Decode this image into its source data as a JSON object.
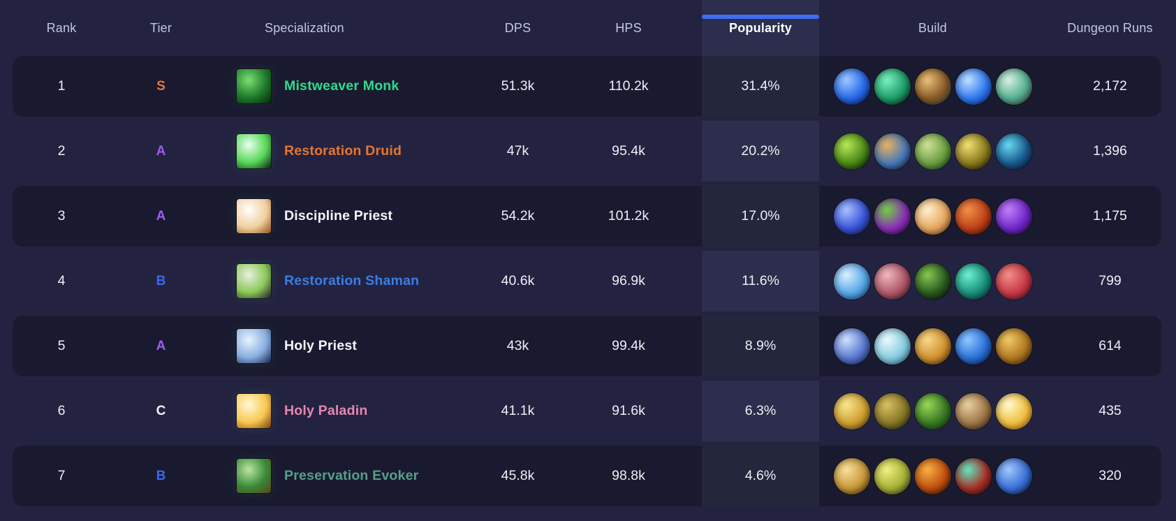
{
  "colors": {
    "page_bg": "#232341",
    "card_bg": "#191a2f",
    "popularity_band": "rgba(182,192,240,0.07)",
    "accent": "#3d6ef5",
    "header_text": "#c3c8dd",
    "value_text": "#eef0f6"
  },
  "table": {
    "active_column": "Popularity",
    "columns": [
      {
        "key": "rank",
        "label": "Rank"
      },
      {
        "key": "tier",
        "label": "Tier"
      },
      {
        "key": "spec",
        "label": "Specialization"
      },
      {
        "key": "dps",
        "label": "DPS"
      },
      {
        "key": "hps",
        "label": "HPS"
      },
      {
        "key": "popularity",
        "label": "Popularity",
        "active": true
      },
      {
        "key": "build",
        "label": "Build"
      },
      {
        "key": "runs",
        "label": "Dungeon Runs"
      }
    ],
    "rows": [
      {
        "rank": "1",
        "tier": "S",
        "tier_color": "#e8763a",
        "spec": {
          "name": "Mistweaver Monk",
          "color": "#2ddc89",
          "icon_name": "mistweaver-monk-icon",
          "icon_colors": [
            "#7ae070",
            "#1e7a2a",
            "#06240a"
          ]
        },
        "dps": "51.3k",
        "hps": "110.2k",
        "popularity": "31.4%",
        "runs": "2,172",
        "build": [
          {
            "name": "blue-lightning-web-icon",
            "colors": [
              "#9cc8ff",
              "#2668e8",
              "#071c66"
            ]
          },
          {
            "name": "jade-mist-swirl-icon",
            "colors": [
              "#7af0c0",
              "#1d9e6a",
              "#062a1a"
            ]
          },
          {
            "name": "bronze-monk-plaque-icon",
            "colors": [
              "#e8c078",
              "#8a5a28",
              "#2a4434"
            ]
          },
          {
            "name": "blue-light-streak-icon",
            "colors": [
              "#bfe0ff",
              "#2f7af0",
              "#0a2a8a"
            ]
          },
          {
            "name": "jade-statue-icon",
            "colors": [
              "#d8f0e0",
              "#52b090",
              "#463a30"
            ]
          }
        ]
      },
      {
        "rank": "2",
        "tier": "A",
        "tier_color": "#9d5cf0",
        "spec": {
          "name": "Restoration Druid",
          "color": "#e8752e",
          "icon_name": "restoration-druid-icon",
          "icon_colors": [
            "#eafff0",
            "#58d858",
            "#0a2012"
          ]
        },
        "dps": "47k",
        "hps": "95.4k",
        "popularity": "20.2%",
        "runs": "1,396",
        "build": [
          {
            "name": "green-sprout-icon",
            "colors": [
              "#b8e855",
              "#4a8a18",
              "#0a1404"
            ]
          },
          {
            "name": "autumn-leaf-frost-icon",
            "colors": [
              "#e8b060",
              "#4a7ab8",
              "#12204a"
            ]
          },
          {
            "name": "green-seed-icon",
            "colors": [
              "#cfe098",
              "#6aa040",
              "#17401a"
            ]
          },
          {
            "name": "golden-lightning-icon",
            "colors": [
              "#f0e070",
              "#8a7a20",
              "#1a1808"
            ]
          },
          {
            "name": "cyan-leaf-icon",
            "colors": [
              "#66d8f0",
              "#1a5a90",
              "#0a1430"
            ]
          }
        ]
      },
      {
        "rank": "3",
        "tier": "A",
        "tier_color": "#9d5cf0",
        "spec": {
          "name": "Discipline Priest",
          "color": "#f4f5f9",
          "icon_name": "discipline-priest-icon",
          "icon_colors": [
            "#ffffff",
            "#f0d0a0",
            "#90501c"
          ]
        },
        "dps": "54.2k",
        "hps": "101.2k",
        "popularity": "17.0%",
        "runs": "1,175",
        "build": [
          {
            "name": "glowing-blue-figure-icon",
            "colors": [
              "#a8c0ff",
              "#3a55d8",
              "#101a50"
            ]
          },
          {
            "name": "purple-green-orbs-icon",
            "colors": [
              "#70d040",
              "#8a30b8",
              "#2a0a44"
            ]
          },
          {
            "name": "radiant-hand-icon",
            "colors": [
              "#fff0d0",
              "#e8a860",
              "#8a4a20"
            ]
          },
          {
            "name": "red-orange-hand-icon",
            "colors": [
              "#f09048",
              "#c04018",
              "#4a0e04"
            ]
          },
          {
            "name": "purple-swirl-icon",
            "colors": [
              "#c080f8",
              "#7028c8",
              "#240848"
            ]
          }
        ]
      },
      {
        "rank": "4",
        "tier": "B",
        "tier_color": "#3b68f0",
        "spec": {
          "name": "Restoration Shaman",
          "color": "#3a7de4",
          "icon_name": "restoration-shaman-icon",
          "icon_colors": [
            "#e8f0e0",
            "#8ac858",
            "#1a1a22"
          ]
        },
        "dps": "40.6k",
        "hps": "96.9k",
        "popularity": "11.6%",
        "runs": "799",
        "build": [
          {
            "name": "ice-crystal-icon",
            "colors": [
              "#d8f0ff",
              "#58a8e8",
              "#14448a"
            ]
          },
          {
            "name": "pink-spirit-figure-icon",
            "colors": [
              "#f0b8c0",
              "#b05868",
              "#441822"
            ]
          },
          {
            "name": "green-serpent-icon",
            "colors": [
              "#88c850",
              "#2a5a20",
              "#0a0a0a"
            ]
          },
          {
            "name": "teal-vortex-icon",
            "colors": [
              "#70f0d0",
              "#18907a",
              "#083038"
            ]
          },
          {
            "name": "red-crystal-fist-icon",
            "colors": [
              "#f09088",
              "#c83848",
              "#58101c"
            ]
          }
        ]
      },
      {
        "rank": "5",
        "tier": "A",
        "tier_color": "#9d5cf0",
        "spec": {
          "name": "Holy Priest",
          "color": "#f4f5f9",
          "icon_name": "holy-priest-icon",
          "icon_colors": [
            "#e8f4ff",
            "#88aee0",
            "#14204a"
          ]
        },
        "dps": "43k",
        "hps": "99.4k",
        "popularity": "8.9%",
        "runs": "614",
        "build": [
          {
            "name": "blue-angel-icon",
            "colors": [
              "#cfe0ff",
              "#5878d0",
              "#1a2a66"
            ]
          },
          {
            "name": "pale-feather-swirl-icon",
            "colors": [
              "#eafaff",
              "#88cce0",
              "#2a7088"
            ]
          },
          {
            "name": "amber-bell-icon",
            "colors": [
              "#f8d888",
              "#d09030",
              "#583808"
            ]
          },
          {
            "name": "blue-orbs-lamp-icon",
            "colors": [
              "#90c8ff",
              "#2a70d8",
              "#0a2458"
            ]
          },
          {
            "name": "golden-phoenix-icon",
            "colors": [
              "#f0c868",
              "#b07820",
              "#44280a"
            ]
          }
        ]
      },
      {
        "rank": "6",
        "tier": "C",
        "tier_color": "#f2f3f7",
        "spec": {
          "name": "Holy Paladin",
          "color": "#e886b0",
          "icon_name": "holy-paladin-icon",
          "icon_colors": [
            "#fff8d8",
            "#f8c850",
            "#7a3c08"
          ]
        },
        "dps": "41.1k",
        "hps": "91.6k",
        "popularity": "6.3%",
        "runs": "435",
        "build": [
          {
            "name": "gold-starburst-icon",
            "colors": [
              "#f8e890",
              "#d0a030",
              "#6a4a10"
            ]
          },
          {
            "name": "olive-relic-icon",
            "colors": [
              "#d8c060",
              "#887828",
              "#2a2810"
            ]
          },
          {
            "name": "green-leaves-icon",
            "colors": [
              "#98d858",
              "#3a7a24",
              "#123a10"
            ]
          },
          {
            "name": "tan-swirl-icon",
            "colors": [
              "#e8cfa0",
              "#a07848",
              "#40281a"
            ]
          },
          {
            "name": "golden-sun-icon",
            "colors": [
              "#fffad0",
              "#f0c040",
              "#b86a10"
            ]
          }
        ]
      },
      {
        "rank": "7",
        "tier": "B",
        "tier_color": "#3b68f0",
        "spec": {
          "name": "Preservation Evoker",
          "color": "#55a089",
          "icon_name": "preservation-evoker-icon",
          "icon_colors": [
            "#b8e8a0",
            "#3a8838",
            "#5a4418"
          ]
        },
        "dps": "45.8k",
        "hps": "98.8k",
        "popularity": "4.6%",
        "runs": "320",
        "build": [
          {
            "name": "golden-orb-icon",
            "colors": [
              "#f8e0a0",
              "#c89838",
              "#4a3408"
            ]
          },
          {
            "name": "yellow-rings-icon",
            "colors": [
              "#f0f080",
              "#a8b038",
              "#3a4010"
            ]
          },
          {
            "name": "flame-orb-icon",
            "colors": [
              "#f8b040",
              "#c05010",
              "#200a04"
            ]
          },
          {
            "name": "red-teal-dragon-icon",
            "colors": [
              "#60e8c0",
              "#a83028",
              "#3a0c14"
            ]
          },
          {
            "name": "blue-sparkle-orb-icon",
            "colors": [
              "#a0c8f8",
              "#3a70d8",
              "#0a1840"
            ]
          }
        ]
      }
    ]
  }
}
